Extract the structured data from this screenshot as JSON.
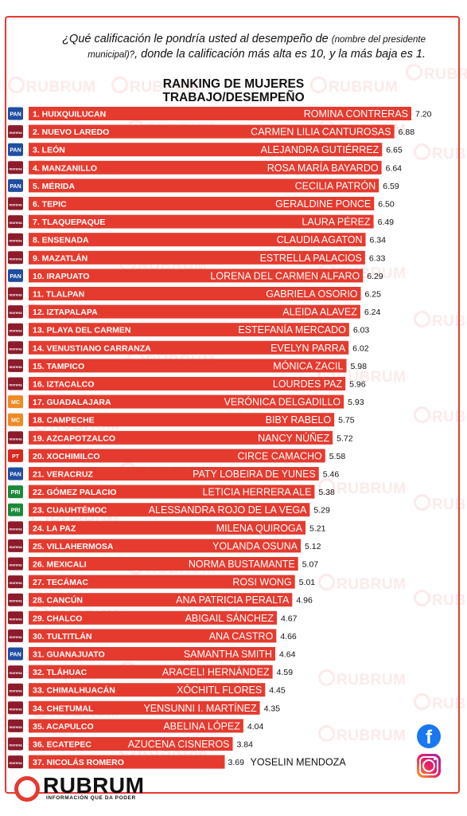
{
  "question": {
    "part1": "¿Qué calificación le pondría usted al desempeño de",
    "note": "(nombre del presidente municipal)?",
    "part2": ", donde la calificación más alta es 10, y la más baja es 1."
  },
  "title_line1": "RANKING DE MUJERES",
  "title_line2": "TRABAJO/DESEMPEÑO",
  "watermark": "RUBRUM",
  "brand": {
    "name": "RUBRUM",
    "tagline": "INFORMACIÓN QUE DA PODER",
    "accent": "#e53b2f"
  },
  "social": [
    "facebook-icon",
    "instagram-icon"
  ],
  "party_styles": {
    "PAN": {
      "label": "PAN",
      "color": "#1f4ea1"
    },
    "MORENA": {
      "label": "morena",
      "color": "#8d1b2b"
    },
    "MC": {
      "label": "MC",
      "color": "#f08a24"
    },
    "PT": {
      "label": "PT",
      "color": "#d9281c"
    },
    "PRI": {
      "label": "PRI",
      "color": "#1a8a3a"
    }
  },
  "chart_data": {
    "type": "bar",
    "orientation": "horizontal",
    "xlim": [
      0,
      7.2
    ],
    "bar_color": "#e53b2f",
    "rows": [
      {
        "rank": "1. HUIXQUILUCAN",
        "name": "ROMINA CONTRERAS",
        "value": 7.2,
        "party": "PAN"
      },
      {
        "rank": "2. NUEVO LAREDO",
        "name": "CARMEN LILIA CANTUROSAS",
        "value": 6.88,
        "party": "MORENA"
      },
      {
        "rank": "3. LEÓN",
        "name": "ALEJANDRA GUTIÉRREZ",
        "value": 6.65,
        "party": "PAN"
      },
      {
        "rank": "4. MANZANILLO",
        "name": "ROSA MARÍA BAYARDO",
        "value": 6.64,
        "party": "MORENA"
      },
      {
        "rank": "5. MÉRIDA",
        "name": "CECILIA PATRÓN",
        "value": 6.59,
        "party": "PAN"
      },
      {
        "rank": "6. TEPIC",
        "name": "GERALDINE PONCE",
        "value": 6.5,
        "party": "MORENA"
      },
      {
        "rank": "7. TLAQUEPAQUE",
        "name": "LAURA PÉREZ",
        "value": 6.49,
        "party": "MORENA"
      },
      {
        "rank": "8. ENSENADA",
        "name": "CLAUDIA AGATON",
        "value": 6.34,
        "party": "MORENA"
      },
      {
        "rank": "9. MAZATLÁN",
        "name": "ESTRELLA PALACIOS",
        "value": 6.33,
        "party": "MORENA"
      },
      {
        "rank": "10. IRAPUATO",
        "name": "LORENA DEL CARMEN ALFARO",
        "value": 6.29,
        "party": "PAN"
      },
      {
        "rank": "11. TLALPAN",
        "name": "GABRIELA OSORIO",
        "value": 6.25,
        "party": "MORENA"
      },
      {
        "rank": "12. IZTAPALAPA",
        "name": "ALEIDA ALAVEZ",
        "value": 6.24,
        "party": "MORENA"
      },
      {
        "rank": "13. PLAYA DEL CARMEN",
        "name": "ESTEFANÍA MERCADO",
        "value": 6.03,
        "party": "MORENA"
      },
      {
        "rank": "14. VENUSTIANO CARRANZA",
        "name": "EVELYN PARRA",
        "value": 6.02,
        "party": "MORENA"
      },
      {
        "rank": "15. TAMPICO",
        "name": "MÓNICA ZACIL",
        "value": 5.98,
        "party": "MORENA"
      },
      {
        "rank": "16. IZTACALCO",
        "name": "LOURDES PAZ",
        "value": 5.96,
        "party": "MORENA"
      },
      {
        "rank": "17. GUADALAJARA",
        "name": "VERÓNICA DELGADILLO",
        "value": 5.93,
        "party": "MC"
      },
      {
        "rank": "18. CAMPECHE",
        "name": "BIBY RABELO",
        "value": 5.75,
        "party": "MC"
      },
      {
        "rank": "19. AZCAPOTZALCO",
        "name": "NANCY NÚÑEZ",
        "value": 5.72,
        "party": "MORENA"
      },
      {
        "rank": "20. XOCHIMILCO",
        "name": "CIRCE CAMACHO",
        "value": 5.58,
        "party": "PT"
      },
      {
        "rank": "21. VERACRUZ",
        "name": "PATY LOBEIRA DE YUNES",
        "value": 5.46,
        "party": "PAN"
      },
      {
        "rank": "22. GÓMEZ PALACIO",
        "name": "LETICIA HERRERA ALE",
        "value": 5.38,
        "party": "PRI"
      },
      {
        "rank": "23. CUAUHTÉMOC",
        "name": "ALESSANDRA ROJO DE LA VEGA",
        "value": 5.29,
        "party": "PRI"
      },
      {
        "rank": "24. LA PAZ",
        "name": "MILENA QUIROGA",
        "value": 5.21,
        "party": "MORENA"
      },
      {
        "rank": "25. VILLAHERMOSA",
        "name": "YOLANDA OSUNA",
        "value": 5.12,
        "party": "MORENA"
      },
      {
        "rank": "26. MEXICALI",
        "name": "NORMA BUSTAMANTE",
        "value": 5.07,
        "party": "MORENA"
      },
      {
        "rank": "27. TECÁMAC",
        "name": "ROSI WONG",
        "value": 5.01,
        "party": "MORENA"
      },
      {
        "rank": "28. CANCÚN",
        "name": "ANA PATRICIA PERALTA",
        "value": 4.96,
        "party": "MORENA"
      },
      {
        "rank": "29. CHALCO",
        "name": "ABIGAIL SÁNCHEZ",
        "value": 4.67,
        "party": "MORENA"
      },
      {
        "rank": "30. TULTITLÁN",
        "name": "ANA CASTRO",
        "value": 4.66,
        "party": "MORENA"
      },
      {
        "rank": "31. GUANAJUATO",
        "name": "SAMANTHA SMITH",
        "value": 4.64,
        "party": "PAN"
      },
      {
        "rank": "32. TLÁHUAC",
        "name": "ARACELI HERNÁNDEZ",
        "value": 4.59,
        "party": "MORENA"
      },
      {
        "rank": "33. CHIMALHUACÁN",
        "name": "XÓCHITL FLORES",
        "value": 4.45,
        "party": "MORENA"
      },
      {
        "rank": "34. CHETUMAL",
        "name": "YENSUNNI I. MARTÍNEZ",
        "value": 4.35,
        "party": "MORENA"
      },
      {
        "rank": "35. ACAPULCO",
        "name": "ABELINA LÓPEZ",
        "value": 4.04,
        "party": "MORENA"
      },
      {
        "rank": "36. ECATEPEC",
        "name": "AZUCENA CISNEROS",
        "value": 3.84,
        "party": "MORENA"
      },
      {
        "rank": "37. NICOLÁS ROMERO",
        "name": "YOSELIN MENDOZA",
        "value": 3.69,
        "party": "MORENA"
      }
    ]
  }
}
